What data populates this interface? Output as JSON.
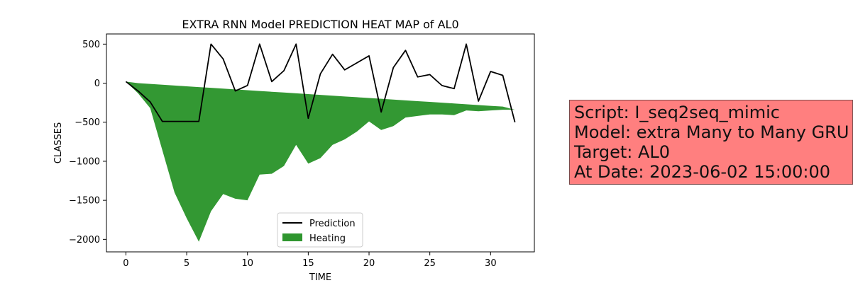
{
  "chart_data": {
    "type": "area",
    "title": "EXTRA RNN Model PREDICTION HEAT MAP of AL0",
    "xlabel": "TIME",
    "ylabel": "CLASSES",
    "xlim": [
      -1.6,
      33.6
    ],
    "ylim": [
      -2160,
      630
    ],
    "xticks": [
      0,
      5,
      10,
      15,
      20,
      25,
      30
    ],
    "yticks": [
      500,
      0,
      -500,
      -1000,
      -1500,
      -2000
    ],
    "ytick_labels": [
      "500",
      "0",
      "−500",
      "−1000",
      "−1500",
      "−2000"
    ],
    "legend_position": "lower center",
    "series": [
      {
        "name": "Prediction",
        "kind": "line",
        "color": "#000000",
        "x": [
          0,
          1,
          2,
          3,
          4,
          5,
          6,
          7,
          8,
          9,
          10,
          11,
          12,
          13,
          14,
          15,
          16,
          17,
          18,
          19,
          20,
          21,
          22,
          23,
          24,
          25,
          26,
          27,
          28,
          29,
          30,
          31,
          32
        ],
        "y": [
          20,
          -100,
          -240,
          -490,
          -490,
          -490,
          -490,
          500,
          310,
          -100,
          -30,
          500,
          20,
          160,
          500,
          -450,
          120,
          370,
          170,
          260,
          350,
          -370,
          200,
          420,
          80,
          110,
          -30,
          -70,
          500,
          -230,
          150,
          100,
          -500
        ]
      },
      {
        "name": "Heating",
        "kind": "fill_between",
        "color": "#2f962f",
        "x": [
          0,
          1,
          2,
          3,
          4,
          5,
          6,
          7,
          8,
          9,
          10,
          11,
          12,
          13,
          14,
          15,
          16,
          17,
          18,
          19,
          20,
          21,
          22,
          23,
          24,
          25,
          26,
          27,
          28,
          29,
          30,
          31,
          32
        ],
        "upper": [
          20,
          0,
          -10,
          -20,
          -30,
          -40,
          -50,
          -60,
          -70,
          -80,
          -90,
          -100,
          -110,
          -120,
          -130,
          -140,
          -150,
          -160,
          -170,
          -180,
          -190,
          -200,
          -210,
          -220,
          -230,
          -240,
          -250,
          -260,
          -270,
          -280,
          -290,
          -300,
          -340
        ],
        "lower": [
          20,
          -130,
          -320,
          -860,
          -1400,
          -1730,
          -2030,
          -1640,
          -1420,
          -1480,
          -1500,
          -1170,
          -1160,
          -1060,
          -790,
          -1030,
          -960,
          -790,
          -720,
          -620,
          -490,
          -600,
          -550,
          -440,
          -420,
          -400,
          -400,
          -410,
          -350,
          -360,
          -350,
          -340,
          -340
        ]
      }
    ]
  },
  "info_box": {
    "lines": [
      "Script: I_seq2seq_mimic",
      "Model: extra Many to Many GRU",
      "Target: AL0",
      "At Date: 2023-06-02 15:00:00"
    ],
    "background": "#ff7f7f"
  }
}
